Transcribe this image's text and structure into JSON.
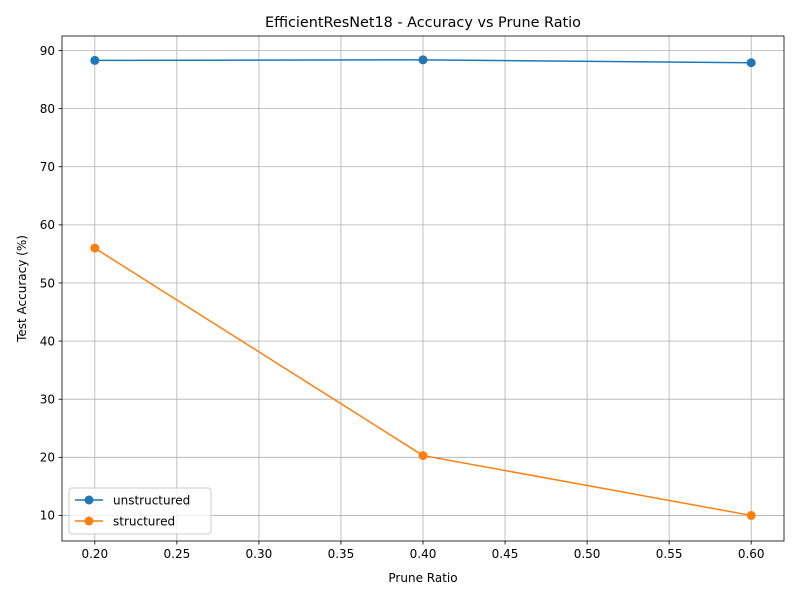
{
  "chart_data": {
    "type": "line",
    "title": "EfficientResNet18 - Accuracy vs Prune Ratio",
    "xlabel": "Prune Ratio",
    "ylabel": "Test Accuracy (%)",
    "x": [
      0.2,
      0.4,
      0.6
    ],
    "xlim": [
      0.18,
      0.62
    ],
    "ylim": [
      5.6,
      92.5
    ],
    "xticks": [
      0.2,
      0.25,
      0.3,
      0.35,
      0.4,
      0.45,
      0.5,
      0.55,
      0.6
    ],
    "xtick_labels": [
      "0.20",
      "0.25",
      "0.30",
      "0.35",
      "0.40",
      "0.45",
      "0.50",
      "0.55",
      "0.60"
    ],
    "yticks": [
      10,
      20,
      30,
      40,
      50,
      60,
      70,
      80,
      90
    ],
    "ytick_labels": [
      "10",
      "20",
      "30",
      "40",
      "50",
      "60",
      "70",
      "80",
      "90"
    ],
    "grid": true,
    "legend_position": "lower-left",
    "series": [
      {
        "name": "unstructured",
        "color": "#1f77b4",
        "values": [
          88.3,
          88.4,
          87.9
        ]
      },
      {
        "name": "structured",
        "color": "#ff7f0e",
        "values": [
          56.0,
          20.3,
          10.0
        ]
      }
    ]
  }
}
